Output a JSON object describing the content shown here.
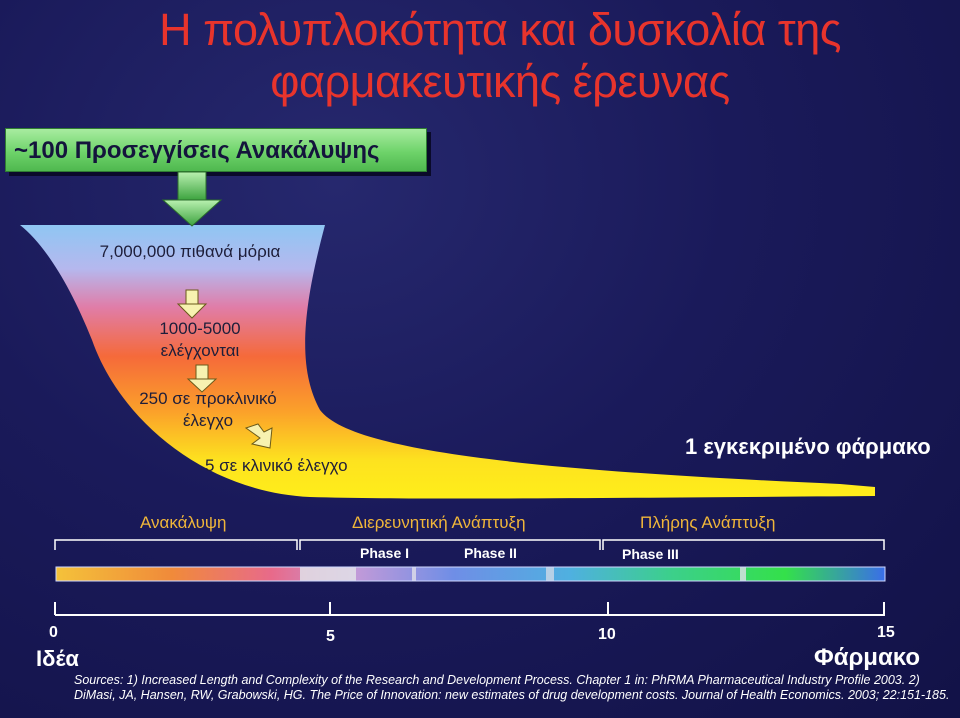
{
  "title": {
    "line1": "Η πολυπλοκότητα και δυσκολία της",
    "line2": "φαρμακευτικής έρευνας"
  },
  "approaches": "~100 Προσεγγίσεις Ανακάλυψης",
  "funnel": {
    "molecules": "7,000,000 πιθανά μόρια",
    "screened_line1": "1000-5000",
    "screened_line2": "ελέγχονται",
    "preclinical_line1": "250 σε προκλινικό",
    "preclinical_line2": "έλεγχο",
    "clinical": "5 σε κλινικό έλεγχο",
    "approved": "1 εγκεκριμένο φάρμακο"
  },
  "stages": {
    "discovery": "Ανακάλυψη",
    "exploratory": "Διερευνητική Ανάπτυξη",
    "full": "Πλήρης Ανάπτυξη",
    "phase1": "Phase I",
    "phase2": "Phase II",
    "phase3": "Phase III"
  },
  "axis": {
    "t0": "0",
    "t5": "5",
    "t10": "10",
    "t15": "15",
    "start": "Ιδέα",
    "end": "Φάρμακο"
  },
  "sources": "Sources: 1) Increased Length and Complexity of the Research and Development Process. Chapter 1 in: PhRMA Pharmaceutical Industry Profile 2003. 2) DiMasi, JA, Hansen, RW, Grabowski, HG. The Price of Innovation: new estimates of drug development costs. Journal of Health Economics. 2003; 22:151-185.",
  "colors": {
    "title": "#e8342c",
    "stage_labels": "#f0b63a",
    "approaches_box": "#6ed36a",
    "background": "#1a1a5a"
  }
}
